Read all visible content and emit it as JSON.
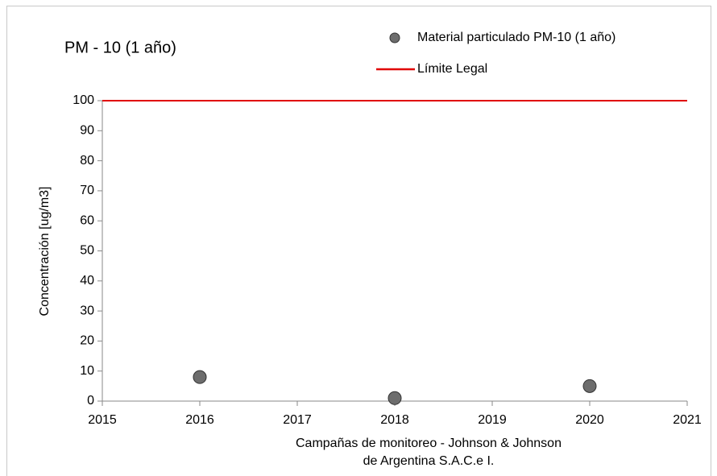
{
  "chart_data": {
    "type": "scatter",
    "title": "PM - 10 (1 año)",
    "ylabel": "Concentración [ug/m3]",
    "xlabel": [
      "Campañas de monitoreo - Johnson & Johnson",
      "de Argentina S.A.C.e I."
    ],
    "series": [
      {
        "name": "Material particulado PM-10 (1 año)",
        "color": "#6d6d6d",
        "x": [
          2016,
          2018,
          2020
        ],
        "values": [
          8,
          1,
          5
        ]
      }
    ],
    "limit": {
      "name": "Límite Legal",
      "value": 100,
      "color": "#e00000"
    },
    "xlim": [
      2015,
      2021
    ],
    "xticks": [
      2015,
      2016,
      2017,
      2018,
      2019,
      2020,
      2021
    ],
    "ylim": [
      0,
      100
    ],
    "yticks": [
      0,
      10,
      20,
      30,
      40,
      50,
      60,
      70,
      80,
      90,
      100
    ],
    "grid": false
  }
}
